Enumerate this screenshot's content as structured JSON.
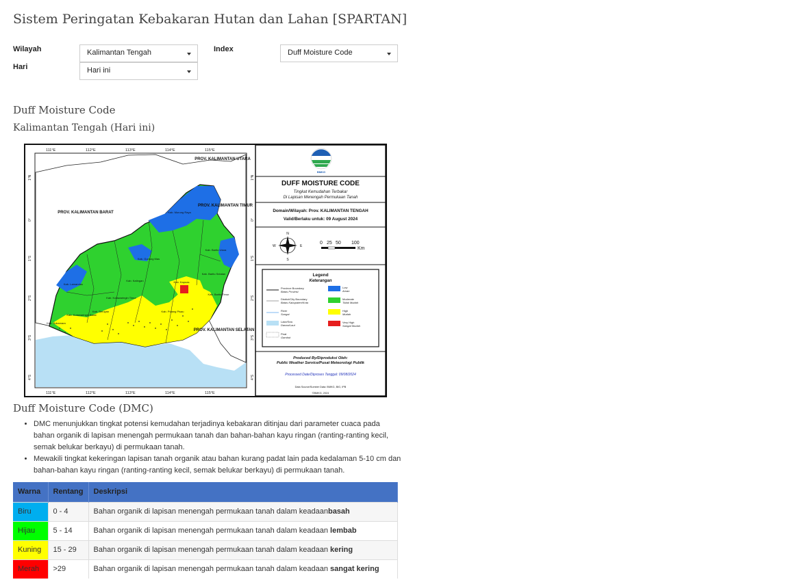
{
  "page": {
    "title": "Sistem Peringatan Kebakaran Hutan dan Lahan [SPARTAN]"
  },
  "filters": {
    "wilayah_label": "Wilayah",
    "wilayah_value": "Kalimantan Tengah",
    "index_label": "Index",
    "index_value": "Duff Moisture Code",
    "hari_label": "Hari",
    "hari_value": "Hari ini"
  },
  "section": {
    "heading": "Duff Moisture Code",
    "subheading": "Kalimantan Tengah (Hari ini)"
  },
  "map": {
    "lon_ticks": [
      "111°E",
      "112°E",
      "113°E",
      "114°E",
      "115°E"
    ],
    "lat_ticks": [
      "1°S",
      "2°S",
      "3°S",
      "1°S",
      "2°S",
      "3°S",
      "4°S",
      "1°S",
      "2°S",
      "3°S",
      "4°S"
    ],
    "lat_left": [
      "1°N",
      "0°",
      "1°S",
      "2°S",
      "3°S",
      "4°S"
    ],
    "lat_right": [
      "1°N",
      "0°",
      "1°S",
      "2°S",
      "3°S",
      "4°S"
    ],
    "regions": {
      "kaltara": "PROV. KALIMANTAN UTARA",
      "kalbar": "PROV. KALIMANTAN BARAT",
      "kaltim": "PROV. KALIMANTAN TIMUR",
      "kalsel": "PROV. KALIMANTAN SELATAN"
    },
    "kab_labels": [
      "Kab. Murung Raya",
      "Kab. Gunung Mas",
      "Kab. Barito Utara",
      "Kab. Katingan",
      "Kab. Kapuas",
      "Kab. Lamandau",
      "Kab. Kotawaringin Timur",
      "Kab. Seruyan",
      "Kab. Pulang Pisau",
      "Kab. Barito Selatan",
      "Kab. Barito Timur",
      "Kab. Sukamara",
      "Kab. Kotawaringin Barat"
    ],
    "agency": "BMKG",
    "panel_title": "DUFF MOISTURE CODE",
    "panel_subtitle_1": "Tingkat Kemudahan Terbakar",
    "panel_subtitle_2": "Di Lapisan Menengah Permukaan Tanah",
    "domain_text": "Domain/Wilayah: Prov. KALIMANTAN TENGAH",
    "valid_text": "Valid/Berlaku untuk: 09 August 2024",
    "scale_labels": [
      "0",
      "25",
      "50",
      "100"
    ],
    "scale_unit": "Km",
    "compass": [
      "N",
      "E",
      "S",
      "W"
    ],
    "legend_title": "Legend",
    "legend_subtitle": "Keterangan",
    "legend_lines": [
      {
        "en": "Province Boundary",
        "id": "Batas Provinsi"
      },
      {
        "en": "District/City Boundary",
        "id": "Batas Kabupaten/Kota"
      },
      {
        "en": "River",
        "id": "Sungai"
      },
      {
        "en": "Lake/Sea",
        "id": "Danau/Laut"
      },
      {
        "en": "Peat",
        "id": "Gambut"
      }
    ],
    "legend_classes": [
      {
        "en": "Low",
        "id": "Aman",
        "color": "#1e6fe6"
      },
      {
        "en": "Moderate",
        "id": "Tidak Mudah",
        "color": "#2fd12f"
      },
      {
        "en": "High",
        "id": "Mudah",
        "color": "#ffff00"
      },
      {
        "en": "Very High",
        "id": "Sangat Mudah",
        "color": "#e61e1e"
      }
    ],
    "produced_1": "Produced By/Diproduksi Oleh:",
    "produced_2": "Public Weather Service/Pusat Meteorologi Publik",
    "processed": "Processed Date/Diproses Tanggal: 09/08/2024",
    "data_source": "Data Source/Sumber Data: BMKG, BIG, IPB",
    "copyright": "©BMKG, 2024"
  },
  "dmc": {
    "heading": "Duff Moisture Code (DMC)",
    "bullets": [
      "DMC menunjukkan tingkat potensi kemudahan terjadinya kebakaran ditinjau dari parameter cuaca pada bahan organik di lapisan menengah permukaan tanah dan bahan-bahan kayu ringan (ranting-ranting kecil, semak belukar berkayu) di permukaan tanah.",
      "Mewakili tingkat kekeringan lapisan tanah organik atau bahan kurang padat lain pada kedalaman 5-10 cm dan bahan-bahan kayu ringan (ranting-ranting kecil, semak belukar berkayu) di permukaan tanah."
    ]
  },
  "table": {
    "headers": [
      "Warna",
      "Rentang",
      "Deskripsi"
    ],
    "rows": [
      {
        "warna": "Biru",
        "color": "#00aeef",
        "rentang": "0 - 4",
        "desc": "Bahan organik di lapisan menengah permukaan tanah dalam keadaan",
        "bold": "basah"
      },
      {
        "warna": "Hijau",
        "color": "#00ff00",
        "rentang": "5 - 14",
        "desc": "Bahan organik di lapisan menengah permukaan tanah dalam keadaan ",
        "bold": "lembab"
      },
      {
        "warna": "Kuning",
        "color": "#ffff00",
        "rentang": "15 - 29",
        "desc": "Bahan organik di lapisan menengah permukaan tanah dalam keadaan ",
        "bold": "kering"
      },
      {
        "warna": "Merah",
        "color": "#ff0000",
        "rentang": ">29",
        "desc": "Bahan organik di lapisan menengah permukaan tanah dalam keadaan ",
        "bold": "sangat kering"
      }
    ]
  }
}
